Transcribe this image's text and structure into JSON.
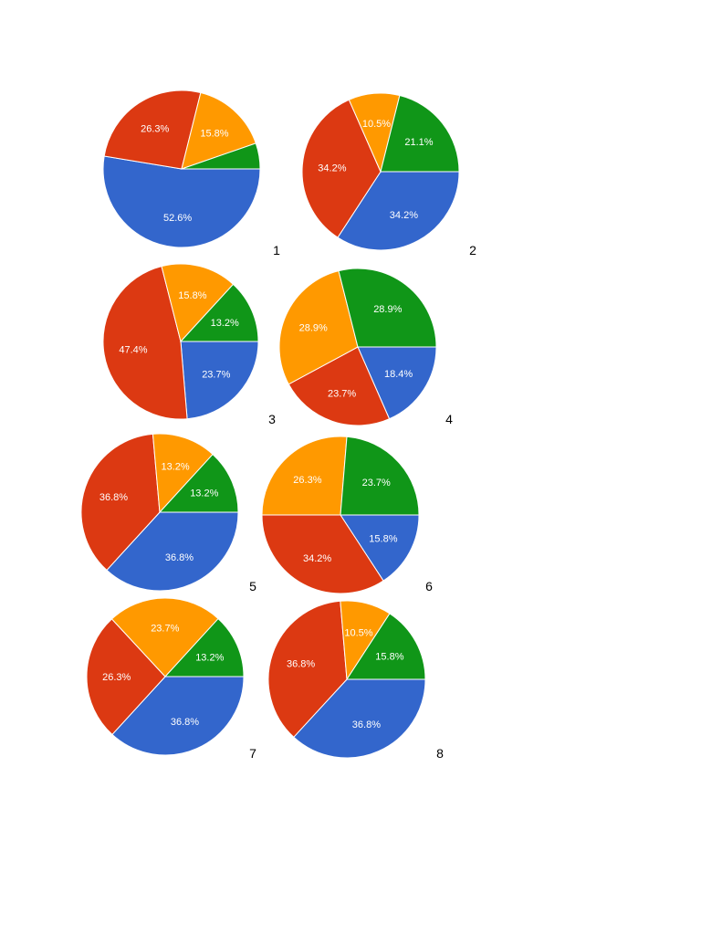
{
  "colors": {
    "blue": "#3366cc",
    "red": "#dc3912",
    "orange": "#ff9900",
    "green": "#109618",
    "slice_border": "#ffffff"
  },
  "chart_data": [
    {
      "type": "pie",
      "number_label": "1",
      "slices": [
        {
          "label": "52.6%",
          "value": 52.6,
          "color": "#3366cc"
        },
        {
          "label": "26.3%",
          "value": 26.3,
          "color": "#dc3912"
        },
        {
          "label": "15.8%",
          "value": 15.8,
          "color": "#ff9900"
        },
        {
          "label": "",
          "value": 5.3,
          "color": "#109618"
        }
      ]
    },
    {
      "type": "pie",
      "number_label": "2",
      "slices": [
        {
          "label": "34.2%",
          "value": 34.2,
          "color": "#3366cc"
        },
        {
          "label": "34.2%",
          "value": 34.2,
          "color": "#dc3912"
        },
        {
          "label": "10.5%",
          "value": 10.5,
          "color": "#ff9900"
        },
        {
          "label": "21.1%",
          "value": 21.1,
          "color": "#109618"
        }
      ]
    },
    {
      "type": "pie",
      "number_label": "3",
      "slices": [
        {
          "label": "23.7%",
          "value": 23.7,
          "color": "#3366cc"
        },
        {
          "label": "47.4%",
          "value": 47.4,
          "color": "#dc3912"
        },
        {
          "label": "15.8%",
          "value": 15.8,
          "color": "#ff9900"
        },
        {
          "label": "13.2%",
          "value": 13.2,
          "color": "#109618"
        }
      ]
    },
    {
      "type": "pie",
      "number_label": "4",
      "slices": [
        {
          "label": "18.4%",
          "value": 18.4,
          "color": "#3366cc"
        },
        {
          "label": "23.7%",
          "value": 23.7,
          "color": "#dc3912"
        },
        {
          "label": "28.9%",
          "value": 28.9,
          "color": "#ff9900"
        },
        {
          "label": "28.9%",
          "value": 28.9,
          "color": "#109618"
        }
      ]
    },
    {
      "type": "pie",
      "number_label": "5",
      "slices": [
        {
          "label": "36.8%",
          "value": 36.8,
          "color": "#3366cc"
        },
        {
          "label": "36.8%",
          "value": 36.8,
          "color": "#dc3912"
        },
        {
          "label": "13.2%",
          "value": 13.2,
          "color": "#ff9900"
        },
        {
          "label": "13.2%",
          "value": 13.2,
          "color": "#109618"
        }
      ]
    },
    {
      "type": "pie",
      "number_label": "6",
      "slices": [
        {
          "label": "15.8%",
          "value": 15.8,
          "color": "#3366cc"
        },
        {
          "label": "34.2%",
          "value": 34.2,
          "color": "#dc3912"
        },
        {
          "label": "26.3%",
          "value": 26.3,
          "color": "#ff9900"
        },
        {
          "label": "23.7%",
          "value": 23.7,
          "color": "#109618"
        }
      ]
    },
    {
      "type": "pie",
      "number_label": "7",
      "slices": [
        {
          "label": "36.8%",
          "value": 36.8,
          "color": "#3366cc"
        },
        {
          "label": "26.3%",
          "value": 26.3,
          "color": "#dc3912"
        },
        {
          "label": "23.7%",
          "value": 23.7,
          "color": "#ff9900"
        },
        {
          "label": "13.2%",
          "value": 13.2,
          "color": "#109618"
        }
      ]
    },
    {
      "type": "pie",
      "number_label": "8",
      "slices": [
        {
          "label": "36.8%",
          "value": 36.8,
          "color": "#3366cc"
        },
        {
          "label": "36.8%",
          "value": 36.8,
          "color": "#dc3912"
        },
        {
          "label": "10.5%",
          "value": 10.5,
          "color": "#ff9900"
        },
        {
          "label": "15.8%",
          "value": 15.8,
          "color": "#109618"
        }
      ]
    }
  ]
}
